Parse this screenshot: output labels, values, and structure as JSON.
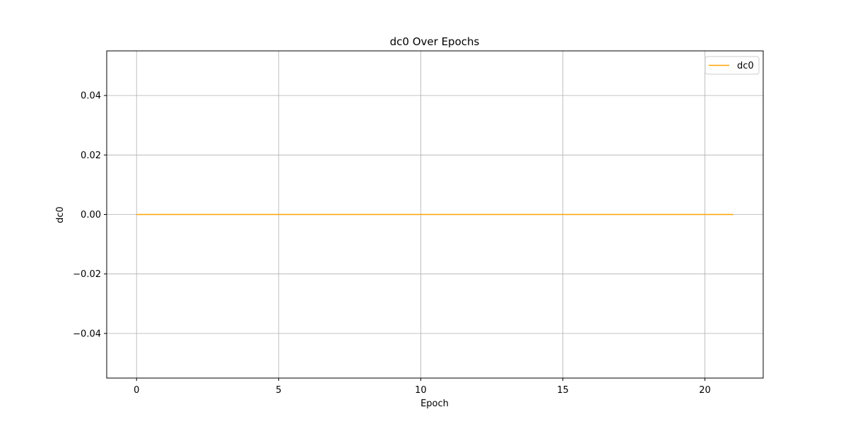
{
  "chart_data": {
    "type": "line",
    "title": "dc0 Over Epochs",
    "xlabel": "Epoch",
    "ylabel": "dc0",
    "xlim": [
      -1.05,
      22.05
    ],
    "ylim": [
      -0.055,
      0.055
    ],
    "x_ticks": [
      0,
      5,
      10,
      15,
      20
    ],
    "x_tick_labels": [
      "0",
      "5",
      "10",
      "15",
      "20"
    ],
    "y_ticks": [
      -0.04,
      -0.02,
      0.0,
      0.02,
      0.04
    ],
    "y_tick_labels": [
      "−0.04",
      "−0.02",
      "0.00",
      "0.02",
      "0.04"
    ],
    "grid": true,
    "legend_position": "upper-right",
    "series": [
      {
        "name": "dc0",
        "color": "#ffa500",
        "x": [
          0,
          1,
          2,
          3,
          4,
          5,
          6,
          7,
          8,
          9,
          10,
          11,
          12,
          13,
          14,
          15,
          16,
          17,
          18,
          19,
          20,
          21
        ],
        "y": [
          0,
          0,
          0,
          0,
          0,
          0,
          0,
          0,
          0,
          0,
          0,
          0,
          0,
          0,
          0,
          0,
          0,
          0,
          0,
          0,
          0,
          0
        ]
      }
    ]
  }
}
